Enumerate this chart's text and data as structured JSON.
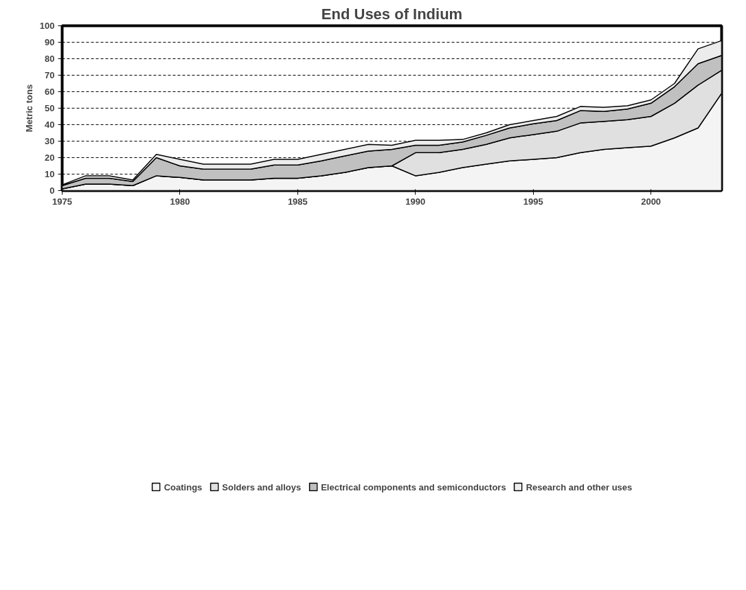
{
  "chart_data": {
    "type": "area",
    "stacked": true,
    "title": "End Uses of Indium",
    "ylabel": "Metric tons",
    "x": [
      1975,
      1976,
      1977,
      1978,
      1979,
      1980,
      1981,
      1982,
      1983,
      1984,
      1985,
      1986,
      1987,
      1988,
      1989,
      1990,
      1991,
      1992,
      1993,
      1994,
      1995,
      1996,
      1997,
      1998,
      1999,
      2000,
      2001,
      2002,
      2003
    ],
    "series": [
      {
        "name": "Coatings",
        "color": "#f4f4f4",
        "values": [
          1,
          4,
          4,
          3,
          9,
          8,
          6.5,
          6.5,
          6.5,
          7.5,
          7.5,
          9,
          11,
          14,
          15,
          9,
          11,
          14,
          16,
          18,
          19,
          20,
          23,
          25,
          26,
          27,
          32,
          38,
          59
        ]
      },
      {
        "name": "Solders and alloys",
        "color": "#e0e0e0",
        "values": [
          0,
          0,
          0,
          0,
          0,
          0,
          0,
          0,
          0,
          0,
          0,
          0,
          0,
          0,
          0,
          14,
          12,
          11,
          12,
          14,
          15,
          16,
          18,
          17,
          17,
          18,
          21,
          26,
          14
        ]
      },
      {
        "name": "Electrical components and semiconductors",
        "color": "#c0c0c0",
        "values": [
          2,
          3.5,
          3.5,
          2.5,
          11,
          7,
          6.5,
          6.5,
          6.5,
          8,
          8,
          9,
          10,
          10,
          10,
          4.5,
          4.5,
          4.5,
          5.5,
          6,
          6.5,
          6.5,
          7.5,
          6,
          6.5,
          8,
          10,
          13,
          9
        ]
      },
      {
        "name": "Research and other uses",
        "color": "#ececec",
        "values": [
          0.5,
          1.5,
          1.5,
          1,
          2,
          4,
          3,
          3,
          3,
          3.5,
          3.5,
          4,
          4,
          4,
          2.5,
          3,
          3,
          1.5,
          1.5,
          2,
          2,
          2.5,
          2.5,
          2.5,
          2,
          2,
          2,
          9,
          9
        ]
      }
    ],
    "xlim": [
      1975,
      2003
    ],
    "xticks": [
      1975,
      1980,
      1985,
      1990,
      1995,
      2000
    ],
    "ylim": [
      0,
      100
    ],
    "yticks": [
      0,
      10,
      20,
      30,
      40,
      50,
      60,
      70,
      80,
      90,
      100
    ],
    "grid": "y",
    "legend": "bottom"
  }
}
